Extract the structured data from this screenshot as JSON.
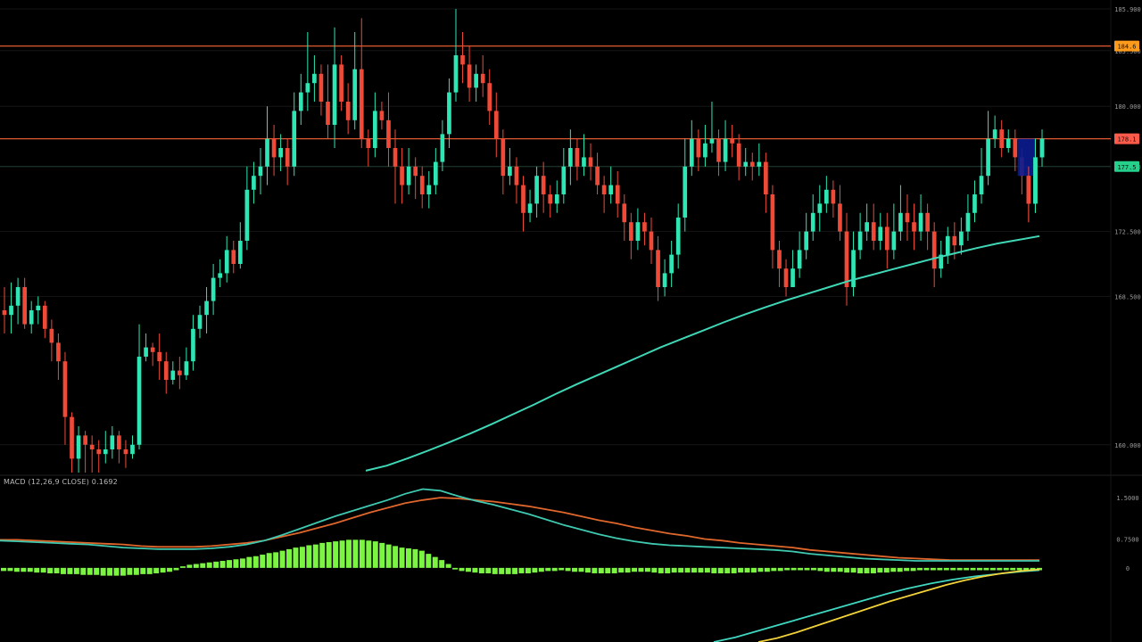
{
  "chart_data": {
    "type": "candlestick",
    "colors": {
      "background": "#000000",
      "up": "#2ee6b4",
      "down": "#ef4a38",
      "ema": "#3fd7b6",
      "hline": "#e0592f",
      "macd_line": "#3ec9b0",
      "signal_line": "#e0672c",
      "histogram": "#7cf542",
      "highlight": "#0a1c8f",
      "price_tag_orange": "#ff9b1a",
      "price_tag_red": "#ff5a4a",
      "price_tag_green": "#25d08a",
      "axis_text": "#9a9a9a",
      "grid": "#151515"
    },
    "price_axis": {
      "range": [
        0,
        100
      ],
      "ticks": [
        {
          "v": 100,
          "label": "185.900"
        },
        {
          "v": 91,
          "label": "183.500"
        },
        {
          "v": 79,
          "label": "180.000"
        },
        {
          "v": 66,
          "label": "176.000"
        },
        {
          "v": 52,
          "label": "172.500"
        },
        {
          "v": 38,
          "label": "168.500"
        },
        {
          "v": 6,
          "label": "160.000"
        }
      ],
      "horizontal_lines": [
        {
          "v": 92,
          "tag": "184.6",
          "tag_color": "#ff9b1a"
        },
        {
          "v": 72,
          "tag": "178.1",
          "tag_color": "#ff5a4a"
        }
      ],
      "current_tag": {
        "v": 66,
        "tag": "177.5",
        "tag_color": "#25d08a"
      }
    },
    "indicator": {
      "title": "MACD (12,26,9 CLOSE) 0.1692",
      "range": [
        -1,
        1
      ],
      "ticks": [
        {
          "v": 0.85,
          "label": "1.5000"
        },
        {
          "v": 0.32,
          "label": "0.7500"
        },
        {
          "v": -0.05,
          "label": "0"
        }
      ]
    },
    "candles": [
      [
        35,
        34,
        40,
        30
      ],
      [
        34,
        36,
        41,
        30
      ],
      [
        36,
        40,
        42,
        32
      ],
      [
        40,
        32,
        42,
        31
      ],
      [
        32,
        35,
        37,
        30
      ],
      [
        35,
        36,
        38,
        32
      ],
      [
        36,
        31,
        37,
        29
      ],
      [
        31,
        28,
        33,
        24
      ],
      [
        28,
        24,
        30,
        20
      ],
      [
        24,
        12,
        26,
        6
      ],
      [
        12,
        3,
        13,
        0
      ],
      [
        3,
        8,
        10,
        0
      ],
      [
        8,
        6,
        9,
        0
      ],
      [
        6,
        5,
        8,
        0
      ],
      [
        5,
        4,
        7,
        0
      ],
      [
        4,
        5,
        9,
        2
      ],
      [
        5,
        8,
        10,
        3
      ],
      [
        8,
        5,
        9,
        2
      ],
      [
        5,
        4,
        7,
        1
      ],
      [
        4,
        6,
        8,
        3
      ],
      [
        6,
        25,
        32,
        5
      ],
      [
        25,
        27,
        30,
        24
      ],
      [
        27,
        26,
        28,
        23
      ],
      [
        26,
        24,
        30,
        20
      ],
      [
        24,
        20,
        26,
        17
      ],
      [
        20,
        22,
        24,
        19
      ],
      [
        22,
        21,
        25,
        18
      ],
      [
        21,
        24,
        27,
        20
      ],
      [
        24,
        31,
        34,
        22
      ],
      [
        31,
        34,
        36,
        29
      ],
      [
        34,
        37,
        40,
        30
      ],
      [
        37,
        42,
        45,
        34
      ],
      [
        42,
        43,
        46,
        40
      ],
      [
        43,
        48,
        51,
        41
      ],
      [
        48,
        45,
        50,
        43
      ],
      [
        45,
        50,
        54,
        44
      ],
      [
        50,
        61,
        66,
        48
      ],
      [
        61,
        64,
        67,
        58
      ],
      [
        64,
        66,
        70,
        60
      ],
      [
        66,
        72,
        79,
        62
      ],
      [
        72,
        68,
        75,
        64
      ],
      [
        68,
        70,
        73,
        65
      ],
      [
        70,
        66,
        72,
        62
      ],
      [
        66,
        78,
        82,
        64
      ],
      [
        78,
        82,
        86,
        75
      ],
      [
        82,
        84,
        95,
        78
      ],
      [
        84,
        86,
        90,
        80
      ],
      [
        86,
        80,
        88,
        77
      ],
      [
        80,
        75,
        88,
        72
      ],
      [
        75,
        88,
        96,
        70
      ],
      [
        88,
        80,
        90,
        78
      ],
      [
        80,
        76,
        84,
        73
      ],
      [
        76,
        87,
        95,
        74
      ],
      [
        87,
        72,
        98,
        70
      ],
      [
        72,
        70,
        74,
        66
      ],
      [
        70,
        78,
        82,
        68
      ],
      [
        78,
        76,
        80,
        74
      ],
      [
        76,
        70,
        82,
        66
      ],
      [
        70,
        66,
        74,
        58
      ],
      [
        66,
        62,
        70,
        58
      ],
      [
        62,
        66,
        70,
        60
      ],
      [
        66,
        64,
        68,
        59
      ],
      [
        64,
        60,
        66,
        57
      ],
      [
        60,
        62,
        65,
        57
      ],
      [
        62,
        67,
        70,
        60
      ],
      [
        67,
        73,
        76,
        65
      ],
      [
        73,
        82,
        85,
        70
      ],
      [
        82,
        90,
        100,
        80
      ],
      [
        90,
        88,
        95,
        84
      ],
      [
        88,
        83,
        92,
        80
      ],
      [
        83,
        86,
        88,
        80
      ],
      [
        86,
        84,
        90,
        81
      ],
      [
        84,
        78,
        87,
        75
      ],
      [
        78,
        72,
        82,
        68
      ],
      [
        72,
        64,
        74,
        60
      ],
      [
        64,
        66,
        70,
        62
      ],
      [
        66,
        62,
        68,
        58
      ],
      [
        62,
        56,
        64,
        52
      ],
      [
        56,
        58,
        61,
        54
      ],
      [
        58,
        64,
        66,
        55
      ],
      [
        64,
        60,
        67,
        56
      ],
      [
        60,
        58,
        62,
        55
      ],
      [
        58,
        60,
        63,
        56
      ],
      [
        60,
        66,
        70,
        58
      ],
      [
        66,
        70,
        74,
        62
      ],
      [
        70,
        66,
        72,
        63
      ],
      [
        66,
        68,
        73,
        64
      ],
      [
        68,
        66,
        71,
        63
      ],
      [
        66,
        62,
        69,
        60
      ],
      [
        62,
        60,
        64,
        56
      ],
      [
        60,
        62,
        66,
        58
      ],
      [
        62,
        58,
        65,
        55
      ],
      [
        58,
        54,
        60,
        50
      ],
      [
        54,
        50,
        56,
        46
      ],
      [
        50,
        54,
        57,
        48
      ],
      [
        54,
        52,
        56,
        49
      ],
      [
        52,
        48,
        55,
        45
      ],
      [
        48,
        40,
        51,
        37
      ],
      [
        40,
        43,
        46,
        38
      ],
      [
        43,
        47,
        50,
        40
      ],
      [
        47,
        55,
        58,
        44
      ],
      [
        55,
        66,
        72,
        52
      ],
      [
        66,
        72,
        76,
        64
      ],
      [
        72,
        68,
        74,
        65
      ],
      [
        68,
        71,
        75,
        66
      ],
      [
        71,
        72,
        80,
        69
      ],
      [
        72,
        67,
        74,
        64
      ],
      [
        67,
        72,
        76,
        65
      ],
      [
        72,
        71,
        75,
        68
      ],
      [
        71,
        66,
        73,
        63
      ],
      [
        66,
        67,
        70,
        64
      ],
      [
        67,
        66,
        69,
        63
      ],
      [
        66,
        67,
        71,
        64
      ],
      [
        67,
        60,
        69,
        56
      ],
      [
        60,
        48,
        62,
        44
      ],
      [
        48,
        44,
        50,
        40
      ],
      [
        44,
        40,
        46,
        38
      ],
      [
        40,
        44,
        48,
        40
      ],
      [
        44,
        48,
        52,
        42
      ],
      [
        48,
        52,
        56,
        46
      ],
      [
        52,
        56,
        60,
        50
      ],
      [
        56,
        58,
        62,
        52
      ],
      [
        58,
        61,
        64,
        56
      ],
      [
        61,
        58,
        63,
        55
      ],
      [
        58,
        52,
        62,
        50
      ],
      [
        52,
        40,
        56,
        36
      ],
      [
        40,
        48,
        52,
        38
      ],
      [
        48,
        52,
        56,
        46
      ],
      [
        52,
        54,
        58,
        50
      ],
      [
        54,
        50,
        58,
        48
      ],
      [
        50,
        53,
        56,
        48
      ],
      [
        53,
        48,
        56,
        44
      ],
      [
        48,
        52,
        58,
        46
      ],
      [
        52,
        56,
        62,
        50
      ],
      [
        56,
        54,
        60,
        50
      ],
      [
        54,
        52,
        58,
        48
      ],
      [
        52,
        56,
        60,
        50
      ],
      [
        56,
        52,
        58,
        48
      ],
      [
        52,
        44,
        54,
        40
      ],
      [
        44,
        47,
        50,
        42
      ],
      [
        47,
        51,
        53,
        45
      ],
      [
        51,
        49,
        54,
        46
      ],
      [
        49,
        52,
        55,
        47
      ],
      [
        52,
        56,
        60,
        50
      ],
      [
        56,
        60,
        63,
        54
      ],
      [
        60,
        64,
        70,
        58
      ],
      [
        64,
        72,
        78,
        62
      ],
      [
        72,
        74,
        77,
        70
      ],
      [
        74,
        70,
        76,
        68
      ],
      [
        70,
        72,
        74,
        69
      ],
      [
        72,
        68,
        74,
        65
      ],
      [
        68,
        64,
        70,
        60
      ],
      [
        64,
        58,
        66,
        54
      ],
      [
        58,
        68,
        72,
        56
      ],
      [
        68,
        72,
        74,
        66
      ]
    ],
    "ema": [
      0.4,
      1.5,
      3.1,
      4.8,
      6.6,
      8.5,
      10.5,
      12.6,
      14.7,
      16.9,
      19.0,
      21.0,
      23.0,
      25.0,
      27.0,
      28.8,
      30.6,
      32.4,
      34.1,
      35.7,
      37.2,
      38.6,
      40.0,
      41.4,
      42.6,
      43.8,
      45.0,
      46.2,
      47.3,
      48.4,
      49.4,
      50.2,
      51.0
    ],
    "histogram": [
      -0.04,
      -0.04,
      -0.05,
      -0.05,
      -0.05,
      -0.06,
      -0.06,
      -0.07,
      -0.07,
      -0.08,
      -0.08,
      -0.08,
      -0.09,
      -0.09,
      -0.09,
      -0.1,
      -0.1,
      -0.1,
      -0.1,
      -0.09,
      -0.09,
      -0.08,
      -0.08,
      -0.07,
      -0.06,
      -0.05,
      -0.03,
      0.02,
      0.04,
      0.05,
      0.06,
      0.07,
      0.08,
      0.09,
      0.1,
      0.11,
      0.12,
      0.14,
      0.15,
      0.17,
      0.19,
      0.2,
      0.22,
      0.24,
      0.26,
      0.27,
      0.29,
      0.3,
      0.32,
      0.33,
      0.34,
      0.35,
      0.36,
      0.36,
      0.36,
      0.35,
      0.34,
      0.32,
      0.3,
      0.28,
      0.26,
      0.25,
      0.24,
      0.22,
      0.18,
      0.14,
      0.1,
      0.05,
      -0.02,
      -0.04,
      -0.05,
      -0.06,
      -0.07,
      -0.07,
      -0.08,
      -0.08,
      -0.08,
      -0.08,
      -0.07,
      -0.07,
      -0.06,
      -0.05,
      -0.04,
      -0.04,
      -0.03,
      -0.04,
      -0.05,
      -0.05,
      -0.06,
      -0.07,
      -0.07,
      -0.07,
      -0.07,
      -0.06,
      -0.06,
      -0.05,
      -0.05,
      -0.05,
      -0.06,
      -0.07,
      -0.07,
      -0.06,
      -0.06,
      -0.06,
      -0.06,
      -0.06,
      -0.06,
      -0.07,
      -0.07,
      -0.07,
      -0.07,
      -0.06,
      -0.06,
      -0.06,
      -0.05,
      -0.05,
      -0.04,
      -0.04,
      -0.03,
      -0.03,
      -0.03,
      -0.03,
      -0.03,
      -0.04,
      -0.05,
      -0.05,
      -0.05,
      -0.06,
      -0.06,
      -0.07,
      -0.07,
      -0.07,
      -0.06,
      -0.06,
      -0.05,
      -0.05,
      -0.04,
      -0.04,
      -0.03,
      -0.03,
      -0.03,
      -0.03,
      -0.03,
      -0.03,
      -0.03,
      -0.03,
      -0.03,
      -0.03,
      -0.03,
      -0.03,
      -0.03,
      -0.03,
      -0.03,
      -0.03,
      -0.03,
      -0.03,
      -0.03
    ],
    "macd_line": [
      0.3,
      0.29,
      0.28,
      0.27,
      0.26,
      0.25,
      0.23,
      0.21,
      0.2,
      0.19,
      0.19,
      0.19,
      0.2,
      0.22,
      0.25,
      0.3,
      0.37,
      0.45,
      0.53,
      0.61,
      0.68,
      0.75,
      0.82,
      0.9,
      0.96,
      0.94,
      0.87,
      0.81,
      0.76,
      0.7,
      0.64,
      0.57,
      0.5,
      0.44,
      0.38,
      0.33,
      0.29,
      0.26,
      0.24,
      0.23,
      0.22,
      0.21,
      0.2,
      0.19,
      0.18,
      0.16,
      0.13,
      0.11,
      0.09,
      0.07,
      0.06,
      0.05,
      0.04,
      0.04,
      0.04,
      0.04,
      0.04,
      0.04,
      0.04,
      0.04
    ],
    "signal_line": [
      0.31,
      0.31,
      0.3,
      0.29,
      0.28,
      0.27,
      0.26,
      0.25,
      0.23,
      0.22,
      0.22,
      0.22,
      0.23,
      0.25,
      0.27,
      0.3,
      0.35,
      0.4,
      0.46,
      0.52,
      0.59,
      0.66,
      0.72,
      0.78,
      0.82,
      0.85,
      0.84,
      0.82,
      0.8,
      0.77,
      0.74,
      0.7,
      0.66,
      0.61,
      0.56,
      0.52,
      0.47,
      0.43,
      0.39,
      0.36,
      0.32,
      0.3,
      0.27,
      0.25,
      0.23,
      0.21,
      0.18,
      0.16,
      0.14,
      0.12,
      0.1,
      0.08,
      0.07,
      0.06,
      0.05,
      0.05,
      0.05,
      0.05,
      0.05,
      0.05
    ],
    "lower_lines": {
      "cyan": [
        -1.0,
        -0.94,
        -0.86,
        -0.78,
        -0.7,
        -0.62,
        -0.54,
        -0.46,
        -0.38,
        -0.31,
        -0.25,
        -0.2,
        -0.16,
        -0.13,
        -0.1,
        -0.08
      ],
      "yellow": [
        -1.0,
        -0.95,
        -0.88,
        -0.8,
        -0.72,
        -0.64,
        -0.56,
        -0.48,
        -0.41,
        -0.34,
        -0.27,
        -0.21,
        -0.16,
        -0.12,
        -0.09,
        -0.07
      ]
    }
  }
}
